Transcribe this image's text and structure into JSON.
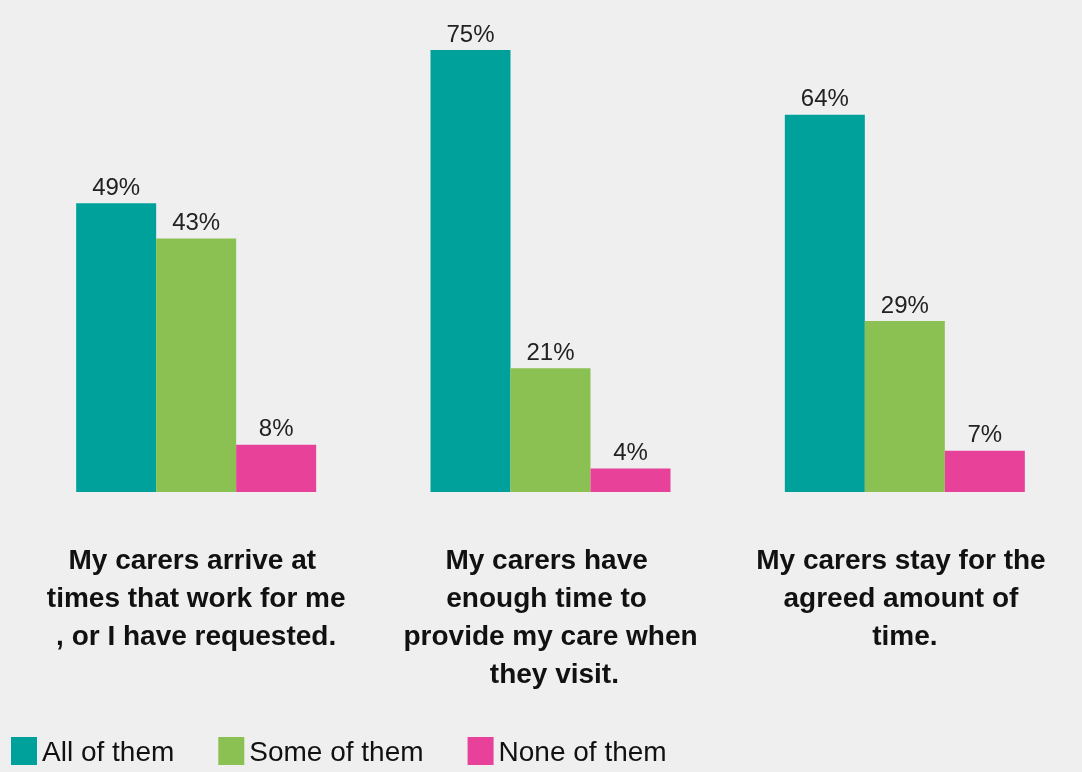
{
  "chart_data": {
    "type": "bar",
    "categories": [
      "My carers arrive at times that work for me, or I have requested.",
      "My carers have enough time to provide my care when they visit.",
      "My carers stay for the agreed amount of time."
    ],
    "series": [
      {
        "name": "All of them",
        "color": "#00a19a",
        "values": [
          49,
          75,
          64
        ],
        "value_labels": [
          "49%",
          "75%",
          "64%"
        ]
      },
      {
        "name": "Some of them",
        "color": "#8bc152",
        "values": [
          43,
          21,
          29
        ],
        "value_labels": [
          "43%",
          "21%",
          "29%"
        ]
      },
      {
        "name": "None of them",
        "color": "#e8419a",
        "values": [
          8,
          4,
          7
        ],
        "value_labels": [
          "8%",
          "4%",
          "7%"
        ]
      }
    ],
    "tick_labels": "x",
    "legend": "bottom left"
  }
}
